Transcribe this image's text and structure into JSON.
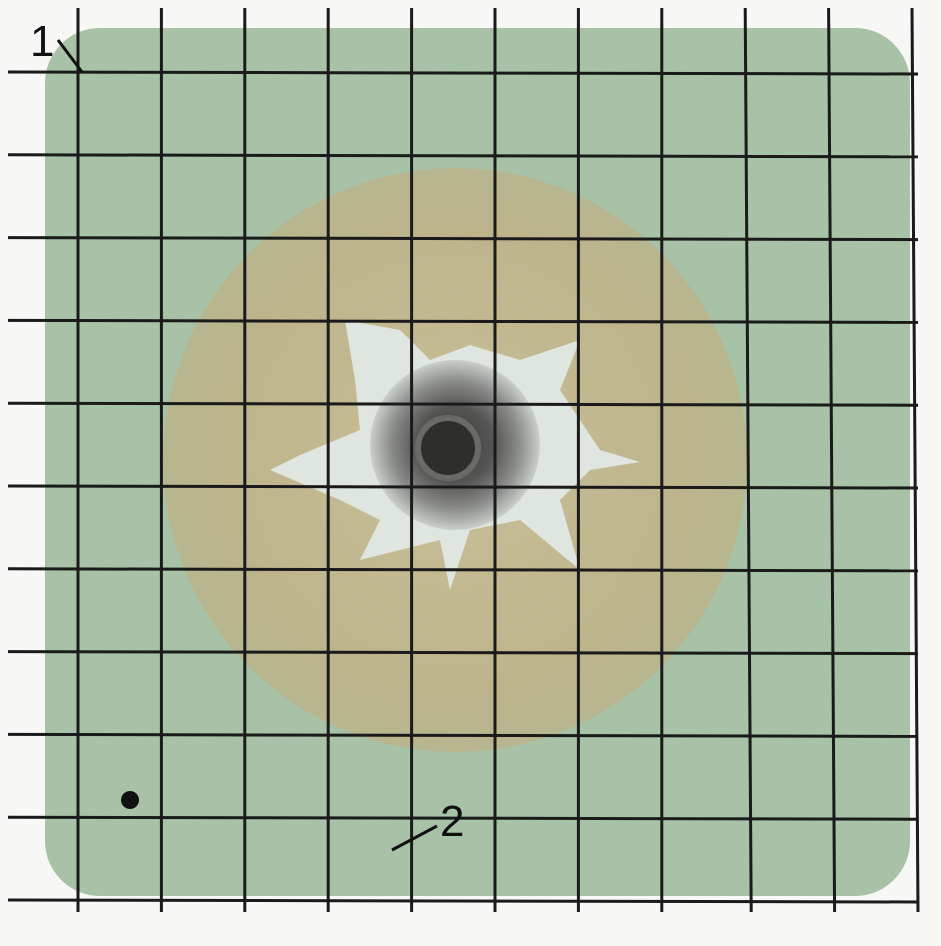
{
  "labels": {
    "marker_1": "1",
    "marker_2": "2"
  }
}
